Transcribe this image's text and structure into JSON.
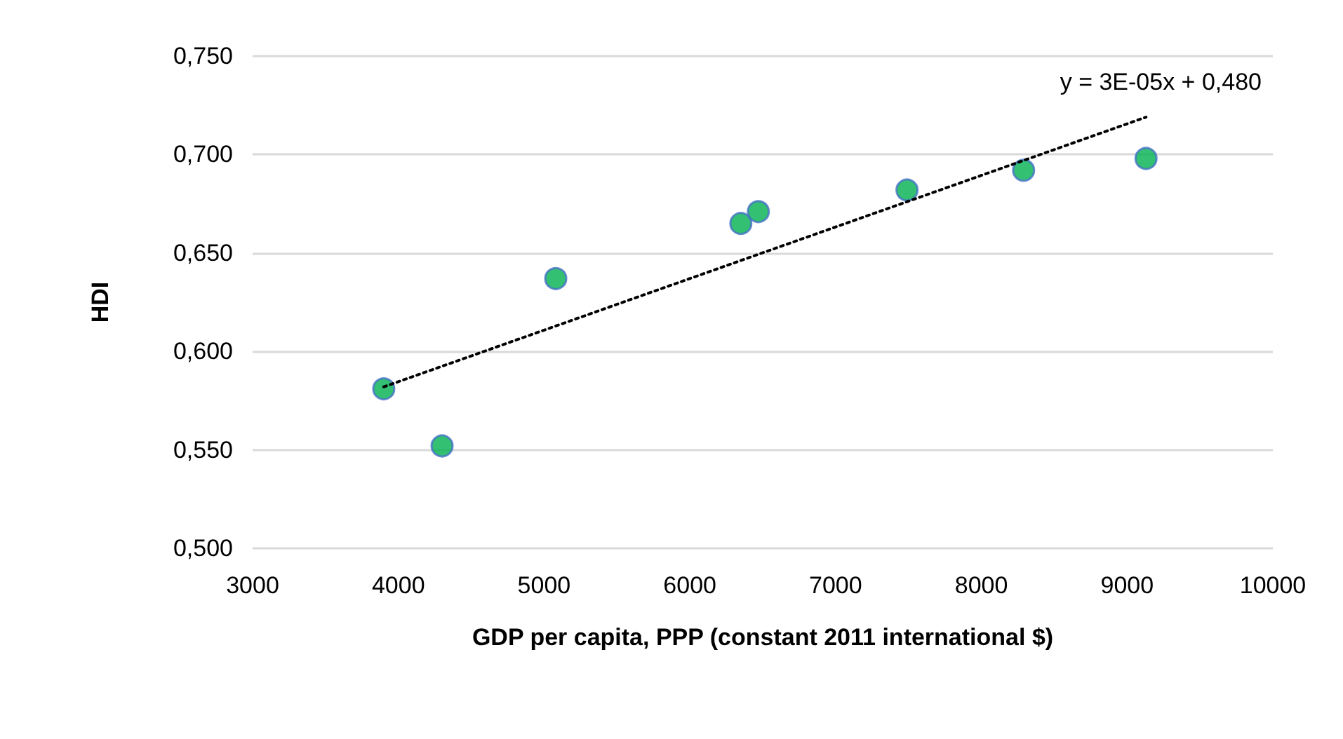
{
  "chart_data": {
    "type": "scatter",
    "xlabel": "GDP per capita, PPP (constant 2011 international $)",
    "ylabel": "HDI",
    "xlim": [
      3000,
      10000
    ],
    "xticks": [
      3000,
      4000,
      5000,
      6000,
      7000,
      8000,
      9000,
      10000
    ],
    "ylim": [
      0.5,
      0.75
    ],
    "yticks": [
      {
        "value": 0.5,
        "label": "0,500"
      },
      {
        "value": 0.55,
        "label": "0,550"
      },
      {
        "value": 0.6,
        "label": "0,600"
      },
      {
        "value": 0.65,
        "label": "0,650"
      },
      {
        "value": 0.7,
        "label": "0,700"
      },
      {
        "value": 0.75,
        "label": "0,750"
      }
    ],
    "grid": "y",
    "marker": "circle",
    "series": [
      {
        "color": "#00b050",
        "x": [
          3900,
          4300,
          5080,
          6350,
          6470,
          7490,
          8290,
          9130
        ],
        "values": [
          0.581,
          0.552,
          0.637,
          0.665,
          0.671,
          0.682,
          0.692,
          0.698
        ]
      },
      {
        "type": "line",
        "line_style": "dotted",
        "marker": "none",
        "color": "#000000",
        "x": [
          3900,
          9130
        ],
        "values": [
          0.582,
          0.719
        ]
      }
    ],
    "annotations": [
      "y = 3E-05x + 0,480"
    ]
  }
}
